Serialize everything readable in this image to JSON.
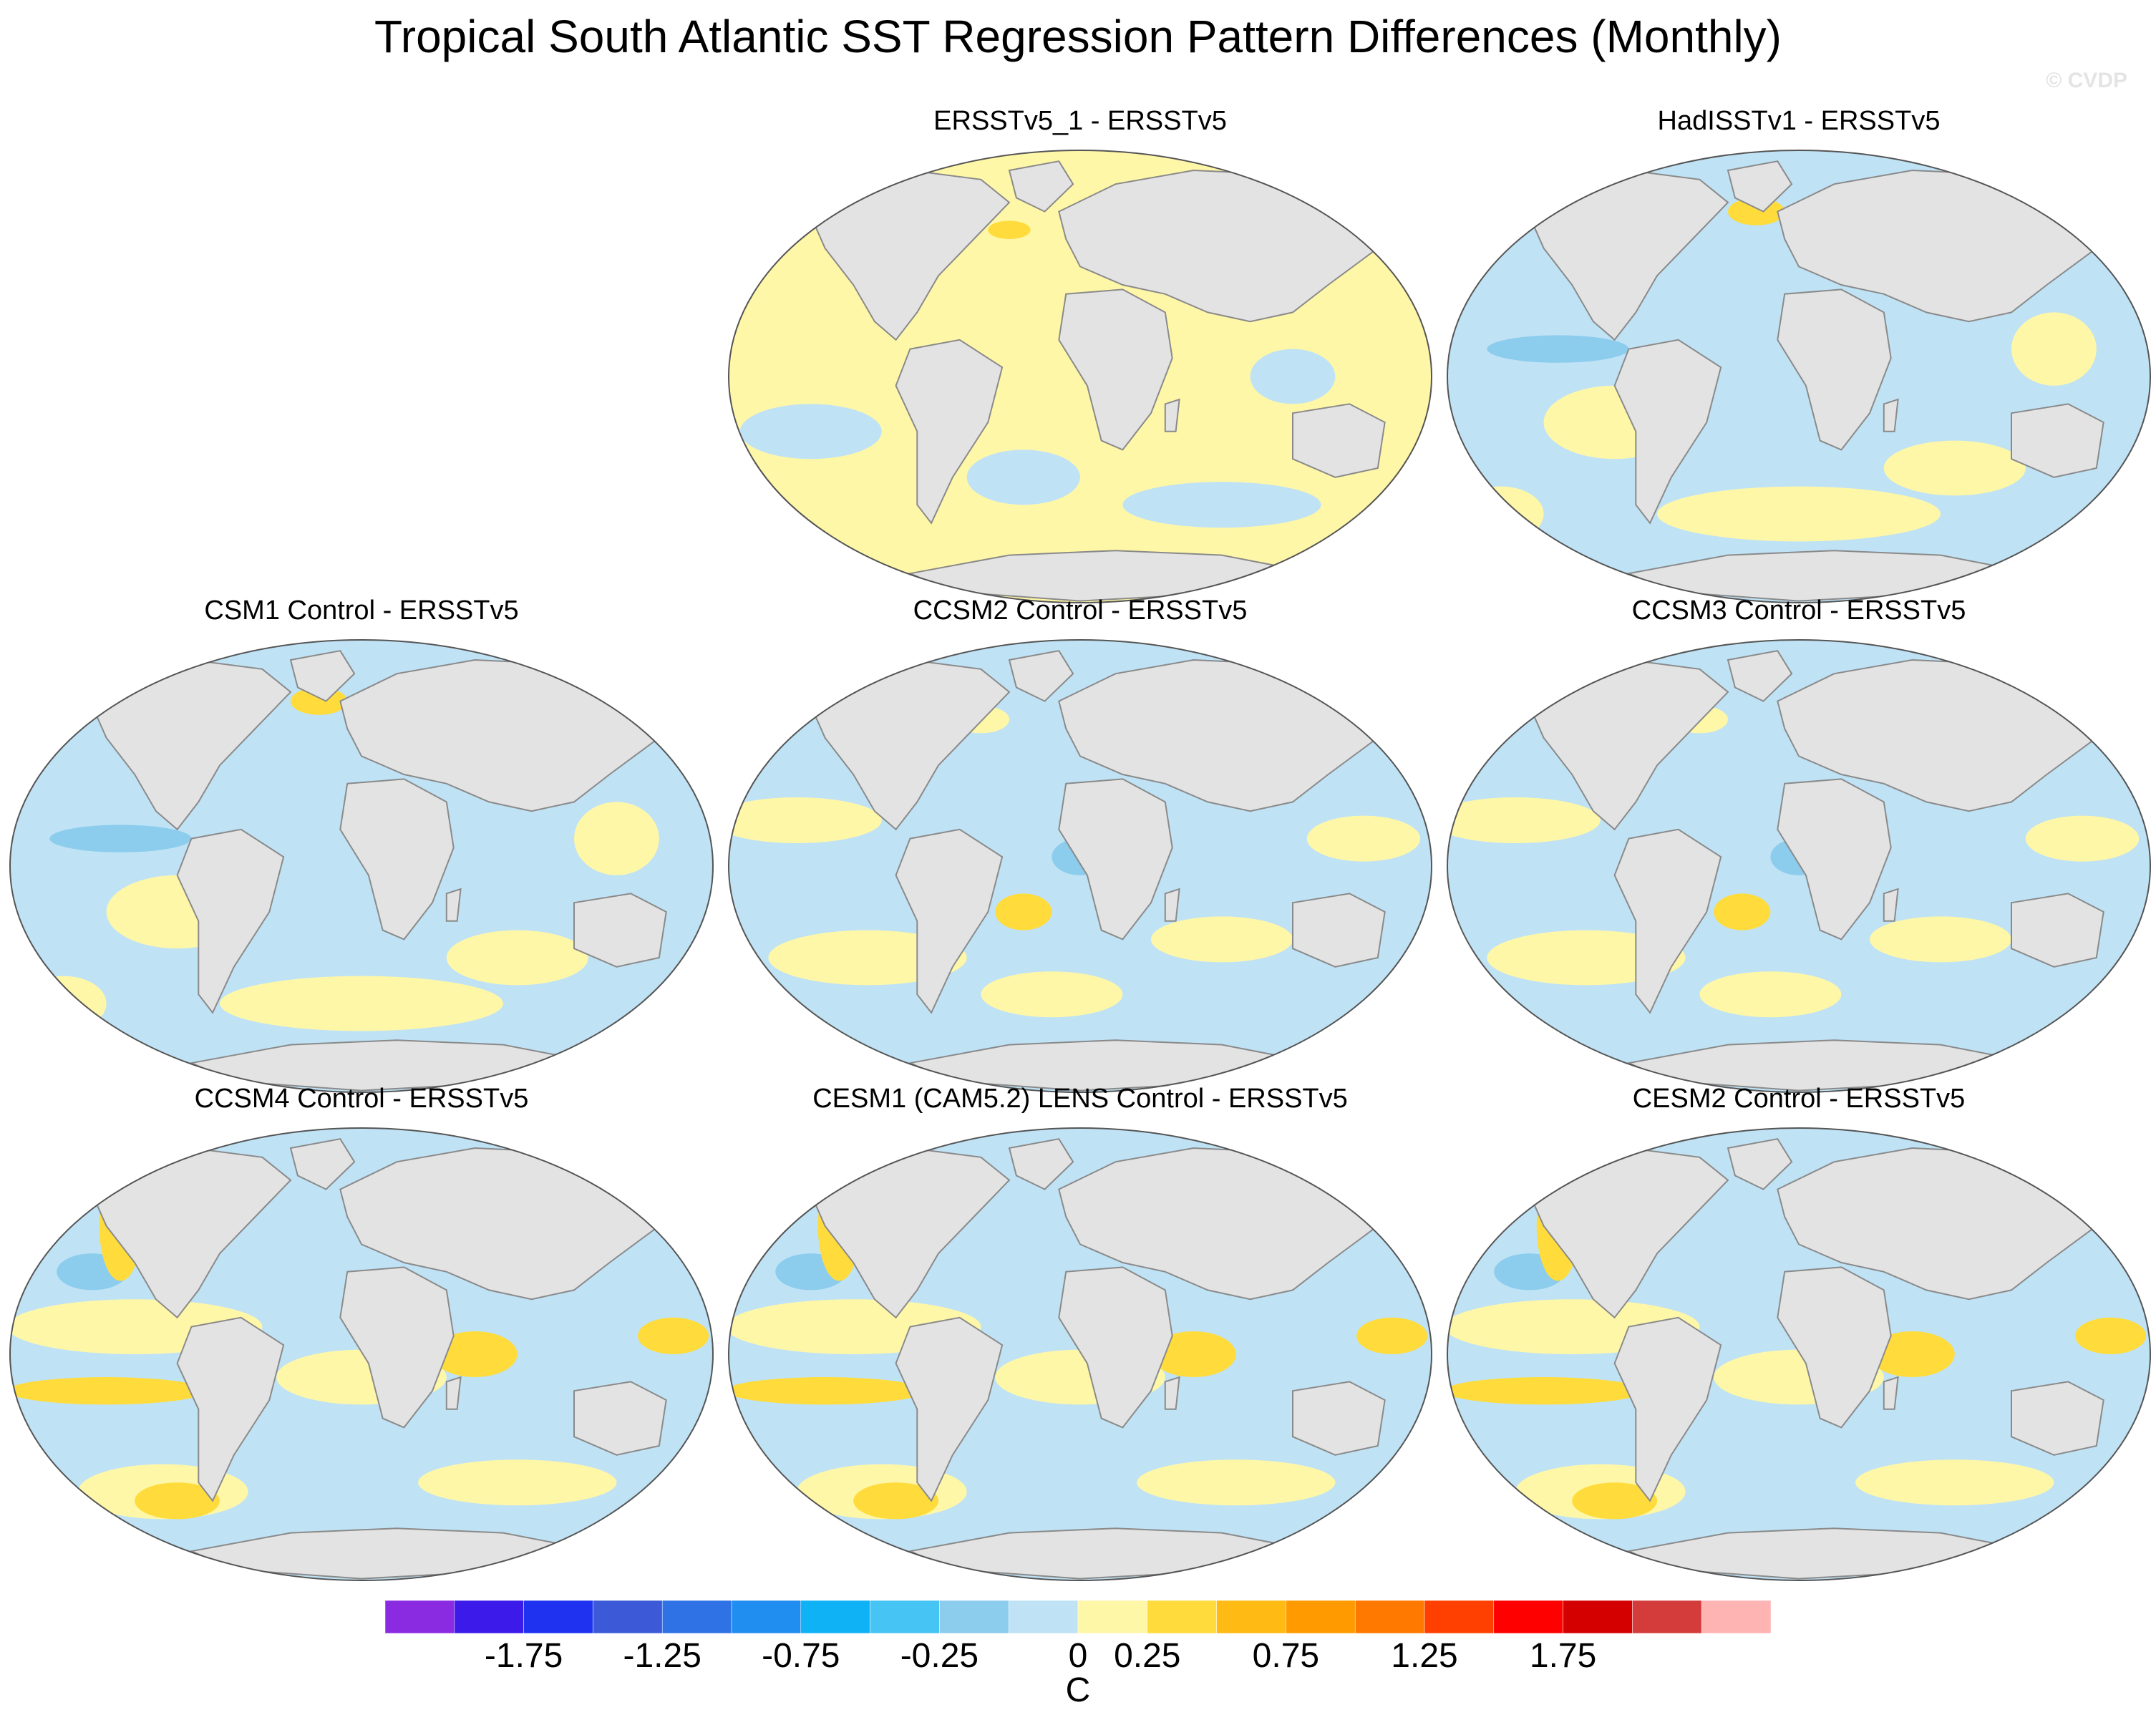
{
  "title": "Tropical South Atlantic SST Regression Pattern Differences (Monthly)",
  "watermark": "© CVDP",
  "panels": [
    {
      "title": "ERSSTv5_1 - ERSSTv5",
      "tone": "warm"
    },
    {
      "title": "HadISSTv1 - ERSSTv5",
      "tone": "cool"
    },
    {
      "title": "CSM1 Control - ERSSTv5",
      "tone": "cool"
    },
    {
      "title": "CCSM2 Control - ERSSTv5",
      "tone": "mixed"
    },
    {
      "title": "CCSM3 Control - ERSSTv5",
      "tone": "mixed"
    },
    {
      "title": "CCSM4 Control - ERSSTv5",
      "tone": "strong"
    },
    {
      "title": "CESM1 (CAM5.2) LENS Control - ERSSTv5",
      "tone": "strong"
    },
    {
      "title": "CESM2 Control - ERSSTv5",
      "tone": "strong"
    }
  ],
  "colorbar": {
    "units": "C",
    "labels": [
      "-1.75",
      "-1.25",
      "-0.75",
      "-0.25",
      "0",
      "0.25",
      "0.75",
      "1.25",
      "1.75"
    ],
    "colors": [
      "#8a2be2",
      "#3c1aea",
      "#1e32f0",
      "#3c5ad8",
      "#2e72e6",
      "#208ef0",
      "#10b2f6",
      "#46c4f4",
      "#8ccced",
      "#bfe2f5",
      "#fff7a8",
      "#ffdc3c",
      "#ffba14",
      "#ff9a00",
      "#ff7800",
      "#ff4000",
      "#ff0000",
      "#d40000",
      "#d43c3c",
      "#ffb4b4"
    ]
  },
  "land_color": "#e3e3e3",
  "coast_color": "#8a8a8a"
}
